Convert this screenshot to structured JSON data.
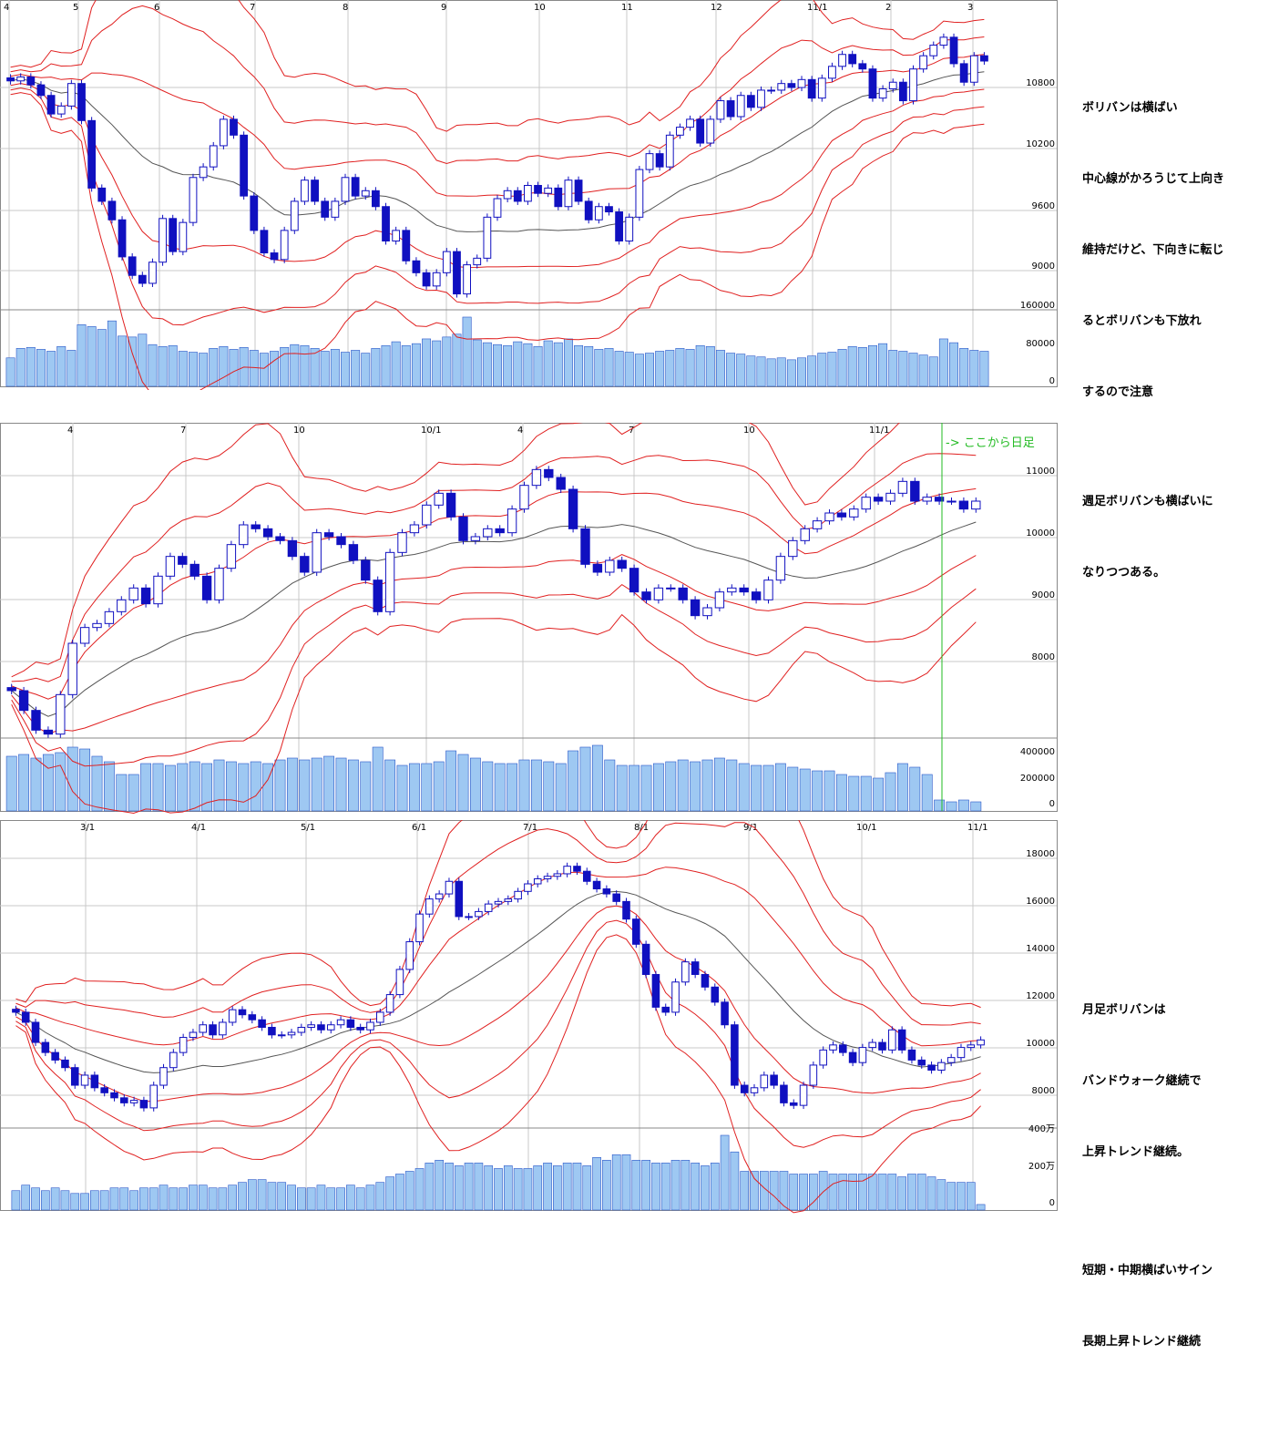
{
  "colors": {
    "grid": "#c8c8c8",
    "band": "#e02020",
    "ma": "#555555",
    "candle_down": "#1010c0",
    "candle_up_stroke": "#1010c0",
    "candle_up_fill": "#ffffff",
    "volume_fill": "#9ec8f2",
    "volume_stroke": "#2a57c8",
    "divider": "#22bb22"
  },
  "notes": {
    "daily": [
      "ボリバンは横ばい",
      "中心線がかろうじて上向き",
      "維持だけど、下向きに転じ",
      "るとボリバンも下放れ",
      "するので注意"
    ],
    "weekly": [
      "週足ボリバンも横ばいに",
      "なりつつある。"
    ],
    "monthly": [
      "月足ボリバンは",
      "バンドウォーク継続で",
      "上昇トレンド継続。",
      "",
      "短期・中期横ばいサイン",
      "長期上昇トレンド継続"
    ]
  },
  "chart_data": [
    {
      "id": "daily",
      "type": "candlestick",
      "x_ticks": [
        "4",
        "5",
        "6",
        "7",
        "8",
        "9",
        "10",
        "11",
        "12",
        "11/1",
        "2",
        "3"
      ],
      "price_ticks": [
        "10800",
        "10200",
        "9600",
        "9000"
      ],
      "volume_ticks": [
        "160000",
        "80000",
        "0"
      ],
      "ylim": [
        8700,
        11000
      ],
      "volume_max": 180000,
      "closes": [
        10430,
        10460,
        10400,
        10320,
        10180,
        10240,
        10410,
        10130,
        9620,
        9520,
        9380,
        9100,
        8960,
        8900,
        9060,
        9390,
        9140,
        9360,
        9700,
        9780,
        9940,
        10140,
        10020,
        9560,
        9300,
        9130,
        9080,
        9300,
        9520,
        9680,
        9520,
        9400,
        9520,
        9700,
        9560,
        9600,
        9480,
        9220,
        9300,
        9070,
        8980,
        8880,
        8980,
        9140,
        8820,
        9040,
        9090,
        9400,
        9540,
        9600,
        9520,
        9640,
        9580,
        9620,
        9480,
        9680,
        9520,
        9380,
        9480,
        9440,
        9220,
        9400,
        9760,
        9880,
        9780,
        10020,
        10080,
        10140,
        9960,
        10140,
        10280,
        10160,
        10320,
        10230,
        10360,
        10360,
        10410,
        10380,
        10440,
        10300,
        10450,
        10540,
        10630,
        10560,
        10520,
        10300,
        10370,
        10420,
        10280,
        10520,
        10620,
        10700,
        10760,
        10560,
        10420,
        10620,
        10580
      ],
      "volumes": [
        60,
        80,
        82,
        78,
        74,
        84,
        76,
        130,
        126,
        120,
        138,
        106,
        104,
        110,
        88,
        84,
        86,
        74,
        72,
        70,
        80,
        84,
        78,
        82,
        76,
        70,
        74,
        82,
        88,
        86,
        80,
        74,
        78,
        72,
        76,
        70,
        80,
        86,
        94,
        86,
        90,
        100,
        96,
        104,
        110,
        146,
        98,
        92,
        88,
        86,
        94,
        90,
        84,
        96,
        92,
        100,
        86,
        84,
        78,
        80,
        74,
        72,
        68,
        70,
        74,
        76,
        80,
        78,
        86,
        84,
        76,
        70,
        68,
        64,
        62,
        58,
        60,
        56,
        60,
        64,
        70,
        72,
        78,
        84,
        82,
        86,
        90,
        76,
        74,
        70,
        66,
        62,
        100,
        92,
        80,
        76,
        74
      ],
      "band_offsets": [
        1,
        2,
        3
      ]
    },
    {
      "id": "weekly",
      "type": "candlestick",
      "x_ticks": [
        "4",
        "7",
        "10",
        "10/1",
        "4",
        "7",
        "10",
        "11/1"
      ],
      "price_ticks": [
        "11000",
        "10000",
        "9000",
        "8000"
      ],
      "volume_ticks": [
        "400000",
        "200000",
        "0"
      ],
      "ylim": [
        7600,
        11500
      ],
      "volume_max": 500000,
      "annotation": "-> ここから日足",
      "closes": [
        8200,
        7950,
        7700,
        7650,
        8150,
        8800,
        9000,
        9050,
        9200,
        9350,
        9500,
        9300,
        9650,
        9900,
        9800,
        9650,
        9350,
        9750,
        10050,
        10300,
        10250,
        10150,
        10100,
        9900,
        9700,
        10200,
        10150,
        10050,
        9850,
        9600,
        9200,
        9950,
        10200,
        10300,
        10550,
        10700,
        10400,
        10100,
        10150,
        10250,
        10200,
        10500,
        10800,
        11000,
        10900,
        10750,
        10250,
        9800,
        9700,
        9850,
        9750,
        9450,
        9350,
        9500,
        9500,
        9350,
        9150,
        9250,
        9450,
        9500,
        9450,
        9350,
        9600,
        9900,
        10100,
        10250,
        10350,
        10450,
        10400,
        10500,
        10650,
        10600,
        10700,
        10850,
        10600,
        10650,
        10600,
        10600,
        10500,
        10600
      ],
      "volumes": [
        60,
        62,
        58,
        62,
        64,
        70,
        68,
        60,
        54,
        40,
        40,
        52,
        52,
        50,
        52,
        54,
        52,
        56,
        54,
        52,
        54,
        52,
        56,
        58,
        56,
        58,
        60,
        58,
        56,
        54,
        70,
        56,
        50,
        52,
        52,
        54,
        66,
        62,
        58,
        54,
        52,
        52,
        56,
        56,
        54,
        52,
        66,
        70,
        72,
        56,
        50,
        50,
        50,
        52,
        54,
        56,
        54,
        56,
        58,
        56,
        52,
        50,
        50,
        52,
        48,
        46,
        44,
        44,
        40,
        38,
        38,
        36,
        42,
        52,
        48,
        40,
        12,
        10,
        12,
        10
      ],
      "band_offsets": [
        1,
        2,
        3
      ]
    },
    {
      "id": "monthly",
      "type": "candlestick",
      "x_ticks": [
        "3/1",
        "4/1",
        "5/1",
        "6/1",
        "7/1",
        "8/1",
        "9/1",
        "10/1",
        "11/1"
      ],
      "price_ticks": [
        "18000",
        "16000",
        "14000",
        "12000",
        "10000",
        "8000"
      ],
      "volume_ticks": [
        "400万",
        "200万",
        "0"
      ],
      "ylim": [
        7200,
        19000
      ],
      "volume_max": 5000000,
      "closes": [
        11800,
        11400,
        10600,
        10200,
        9900,
        9600,
        8900,
        9300,
        8800,
        8600,
        8400,
        8200,
        8300,
        8000,
        8900,
        9600,
        10200,
        10800,
        11000,
        11300,
        10900,
        11400,
        11900,
        11700,
        11500,
        11200,
        10900,
        10900,
        11000,
        11200,
        11300,
        11100,
        11300,
        11500,
        11200,
        11100,
        11400,
        11800,
        12500,
        13500,
        14600,
        15700,
        16300,
        16500,
        17000,
        15600,
        15600,
        15800,
        16100,
        16200,
        16300,
        16600,
        16900,
        17100,
        17200,
        17300,
        17600,
        17400,
        17000,
        16700,
        16500,
        16200,
        15500,
        14500,
        13300,
        12000,
        11800,
        13000,
        13800,
        13300,
        12800,
        12200,
        11300,
        8900,
        8600,
        8800,
        9300,
        8900,
        8200,
        8100,
        8900,
        9700,
        10300,
        10500,
        10200,
        9800,
        10400,
        10600,
        10300,
        11100,
        10300,
        9900,
        9700,
        9500,
        9800,
        10000,
        10400,
        10500,
        10700
      ],
      "volumes": [
        14,
        18,
        16,
        14,
        16,
        14,
        12,
        12,
        14,
        14,
        16,
        16,
        14,
        16,
        16,
        18,
        16,
        16,
        18,
        18,
        16,
        16,
        18,
        20,
        22,
        22,
        20,
        20,
        18,
        16,
        16,
        18,
        16,
        16,
        18,
        16,
        18,
        20,
        24,
        26,
        28,
        30,
        34,
        36,
        34,
        32,
        34,
        34,
        32,
        30,
        32,
        30,
        30,
        32,
        34,
        32,
        34,
        34,
        32,
        38,
        36,
        40,
        40,
        36,
        36,
        34,
        34,
        36,
        36,
        34,
        32,
        34,
        54,
        42,
        28,
        28,
        28,
        28,
        28,
        26,
        26,
        26,
        28,
        26,
        26,
        26,
        26,
        26,
        26,
        26,
        24,
        26,
        26,
        24,
        22,
        20,
        20,
        20,
        4
      ],
      "band_offsets": [
        1,
        2,
        3
      ]
    }
  ]
}
